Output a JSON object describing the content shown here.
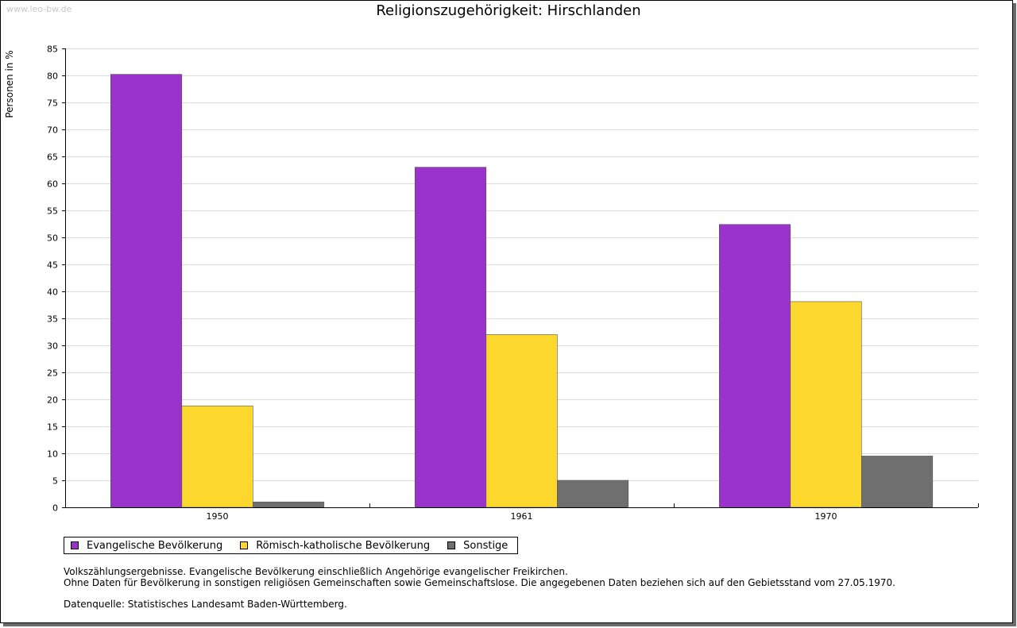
{
  "watermark": "www.leo-bw.de",
  "chart_data": {
    "type": "bar",
    "title": "Religionszugehörigkeit: Hirschlanden",
    "xlabel": "",
    "ylabel": "Personen in %",
    "categories": [
      "1950",
      "1961",
      "1970"
    ],
    "series": [
      {
        "name": "Evangelische Bevölkerung",
        "color": "#9933cc",
        "values": [
          80.2,
          63.0,
          52.4
        ]
      },
      {
        "name": "Römisch-katholische Bevölkerung",
        "color": "#fcd72d",
        "values": [
          18.8,
          32.0,
          38.1
        ]
      },
      {
        "name": "Sonstige",
        "color": "#6f6f6f",
        "values": [
          1.0,
          5.0,
          9.5
        ]
      }
    ],
    "ylim": [
      0,
      85
    ],
    "yticks": [
      0,
      5,
      10,
      15,
      20,
      25,
      30,
      35,
      40,
      45,
      50,
      55,
      60,
      65,
      70,
      75,
      80,
      85
    ],
    "grid": true,
    "legend_position": "bottom-left"
  },
  "notes": [
    "Volkszählungsergebnisse. Evangelische Bevölkerung einschließlich Angehörige evangelischer Freikirchen.",
    "Ohne Daten für Bevölkerung in sonstigen religiösen Gemeinschaften sowie Gemeinschaftslose. Die angegebenen Daten beziehen sich auf den Gebietsstand vom 27.05.1970."
  ],
  "source": "Datenquelle: Statistisches Landesamt Baden-Württemberg."
}
